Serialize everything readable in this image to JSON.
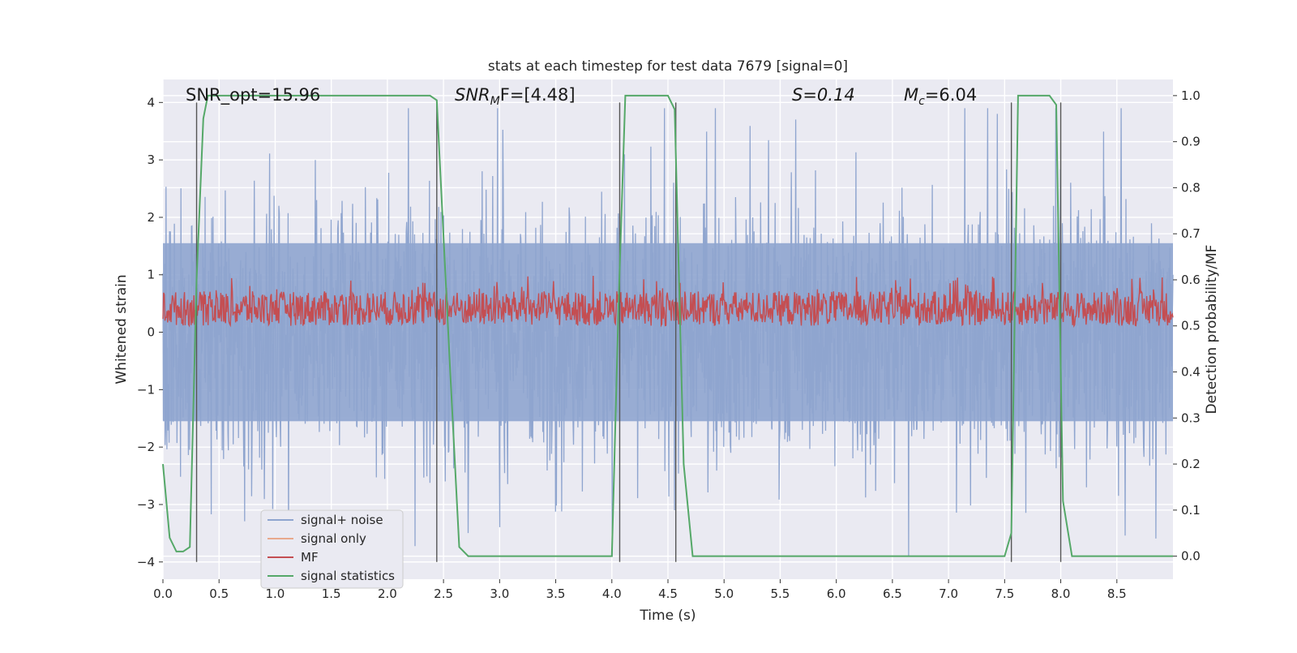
{
  "chart_data": {
    "type": "line",
    "title": "stats at each timestep for test data 7679 [signal=0]",
    "xlabel": "Time (s)",
    "ylabel_left": "Whitened strain",
    "ylabel_right": "Detection probability/MF",
    "xlim": [
      0,
      9.0
    ],
    "ylim_left": [
      -4.3,
      4.4
    ],
    "ylim_right": [
      -0.05,
      1.035
    ],
    "xticks": [
      0.0,
      0.5,
      1.0,
      1.5,
      2.0,
      2.5,
      3.0,
      3.5,
      4.0,
      4.5,
      5.0,
      5.5,
      6.0,
      6.5,
      7.0,
      7.5,
      8.0,
      8.5
    ],
    "xtick_labels": [
      "0.0",
      "0.5",
      "1.0",
      "1.5",
      "2.0",
      "2.5",
      "3.0",
      "3.5",
      "4.0",
      "4.5",
      "5.0",
      "5.5",
      "6.0",
      "6.5",
      "7.0",
      "7.5",
      "8.0",
      "8.5"
    ],
    "yticks_left": [
      -4,
      -3,
      -2,
      -1,
      0,
      1,
      2,
      3,
      4
    ],
    "ytick_labels_left": [
      "−4",
      "−3",
      "−2",
      "−1",
      "0",
      "1",
      "2",
      "3",
      "4"
    ],
    "yticks_right": [
      0.0,
      0.1,
      0.2,
      0.3,
      0.4,
      0.5,
      0.6,
      0.7,
      0.8,
      0.9,
      1.0
    ],
    "ytick_labels_right": [
      "0.0",
      "0.1",
      "0.2",
      "0.3",
      "0.4",
      "0.5",
      "0.6",
      "0.7",
      "0.8",
      "0.9",
      "1.0"
    ],
    "annotations": [
      "SNR_opt=15.96",
      "S=0.14"
    ],
    "annotations_math": [
      {
        "main": "SNR",
        "sub": "M",
        "rest": "F=[4.48]"
      },
      {
        "main": "M",
        "sub": "c",
        "rest": "=6.04"
      }
    ],
    "legend": {
      "location": "lower-left",
      "entries": [
        {
          "label": "signal+ noise",
          "color": "#8fa5cf"
        },
        {
          "label": "signal only",
          "color": "#e8a98c"
        },
        {
          "label": "MF",
          "color": "#c44e52"
        },
        {
          "label": "signal statistics",
          "color": "#55a868"
        }
      ]
    },
    "series": [
      {
        "name": "signal statistics",
        "axis": "right",
        "color": "#55a868",
        "x": [
          0.0,
          0.06,
          0.12,
          0.18,
          0.24,
          0.3,
          0.36,
          0.4,
          2.0,
          2.38,
          2.44,
          2.56,
          2.64,
          2.72,
          3.0,
          4.0,
          4.06,
          4.12,
          4.4,
          4.5,
          4.56,
          4.64,
          4.72,
          5.0,
          7.5,
          7.56,
          7.62,
          7.9,
          7.96,
          8.02,
          8.1,
          8.2,
          9.0
        ],
        "y": [
          0.2,
          0.04,
          0.01,
          0.01,
          0.02,
          0.6,
          0.95,
          1.0,
          1.0,
          1.0,
          0.99,
          0.4,
          0.02,
          0.0,
          0.0,
          0.0,
          0.55,
          1.0,
          1.0,
          1.0,
          0.97,
          0.2,
          0.0,
          0.0,
          0.0,
          0.05,
          1.0,
          1.0,
          0.98,
          0.12,
          0.0,
          0.0,
          0.0
        ]
      },
      {
        "name": "signal+ noise",
        "axis": "left",
        "color": "#8fa5cf",
        "noise_envelope": {
          "typical_abs": 1.9,
          "max_abs": 3.9
        }
      },
      {
        "name": "MF",
        "axis": "right",
        "color": "#c44e52",
        "band": [
          0.5,
          0.6
        ]
      }
    ],
    "marker_lines_x": [
      0.3,
      2.44,
      4.07,
      4.57,
      7.56,
      8.0
    ]
  }
}
